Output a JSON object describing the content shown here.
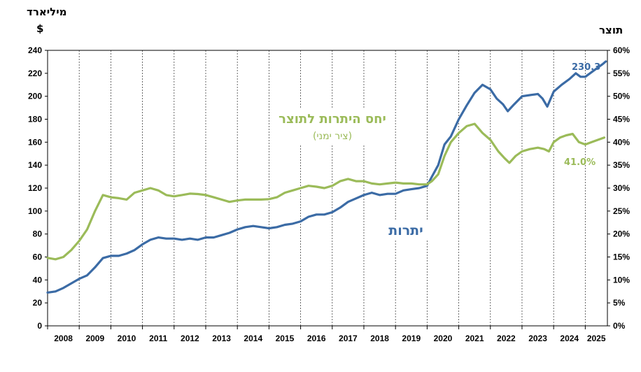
{
  "chart_data": {
    "type": "line",
    "left_unit_label_line1": "מיליארד",
    "left_unit_label_line2": "$",
    "right_unit_label": "תוצר",
    "y_left": {
      "min": 0,
      "max": 240,
      "step": 20,
      "ticks": [
        "0",
        "20",
        "40",
        "60",
        "80",
        "100",
        "120",
        "140",
        "160",
        "180",
        "200",
        "220",
        "240"
      ]
    },
    "y_right": {
      "min": 0,
      "max": 60,
      "step": 5,
      "ticks": [
        "0%",
        "5%",
        "10%",
        "15%",
        "20%",
        "25%",
        "30%",
        "35%",
        "40%",
        "45%",
        "50%",
        "55%",
        "60%"
      ]
    },
    "x_years": [
      "2008",
      "2009",
      "2010",
      "2011",
      "2012",
      "2013",
      "2014",
      "2015",
      "2016",
      "2017",
      "2018",
      "2019",
      "2020",
      "2021",
      "2022",
      "2023",
      "2024",
      "2025"
    ],
    "x_range": [
      2008.0,
      2025.7
    ],
    "grid": "vertical dashed lines at year boundaries",
    "series": [
      {
        "name": "יתרות",
        "axis": "left",
        "color": "#3B6BA5",
        "end_label": "230.3",
        "points": [
          [
            2008.0,
            29
          ],
          [
            2008.25,
            30
          ],
          [
            2008.5,
            33
          ],
          [
            2008.75,
            37
          ],
          [
            2009.0,
            41
          ],
          [
            2009.25,
            44
          ],
          [
            2009.5,
            51
          ],
          [
            2009.75,
            59
          ],
          [
            2010.0,
            61
          ],
          [
            2010.25,
            61
          ],
          [
            2010.5,
            63
          ],
          [
            2010.75,
            66
          ],
          [
            2011.0,
            71
          ],
          [
            2011.25,
            75
          ],
          [
            2011.5,
            77
          ],
          [
            2011.75,
            76
          ],
          [
            2012.0,
            76
          ],
          [
            2012.25,
            75
          ],
          [
            2012.5,
            76
          ],
          [
            2012.75,
            75
          ],
          [
            2013.0,
            77
          ],
          [
            2013.25,
            77
          ],
          [
            2013.5,
            79
          ],
          [
            2013.75,
            81
          ],
          [
            2014.0,
            84
          ],
          [
            2014.25,
            86
          ],
          [
            2014.5,
            87
          ],
          [
            2014.75,
            86
          ],
          [
            2015.0,
            85
          ],
          [
            2015.25,
            86
          ],
          [
            2015.5,
            88
          ],
          [
            2015.75,
            89
          ],
          [
            2016.0,
            91
          ],
          [
            2016.25,
            95
          ],
          [
            2016.5,
            97
          ],
          [
            2016.75,
            97
          ],
          [
            2017.0,
            99
          ],
          [
            2017.25,
            103
          ],
          [
            2017.5,
            108
          ],
          [
            2017.75,
            111
          ],
          [
            2018.0,
            114
          ],
          [
            2018.25,
            116
          ],
          [
            2018.5,
            114
          ],
          [
            2018.75,
            115
          ],
          [
            2019.0,
            115
          ],
          [
            2019.25,
            118
          ],
          [
            2019.5,
            119
          ],
          [
            2019.75,
            120
          ],
          [
            2020.0,
            122
          ],
          [
            2020.15,
            130
          ],
          [
            2020.35,
            140
          ],
          [
            2020.55,
            158
          ],
          [
            2020.75,
            165
          ],
          [
            2021.0,
            180
          ],
          [
            2021.25,
            192
          ],
          [
            2021.5,
            203
          ],
          [
            2021.75,
            210
          ],
          [
            2022.0,
            206
          ],
          [
            2022.2,
            198
          ],
          [
            2022.4,
            193
          ],
          [
            2022.55,
            187
          ],
          [
            2022.75,
            193
          ],
          [
            2023.0,
            200
          ],
          [
            2023.25,
            201
          ],
          [
            2023.5,
            202
          ],
          [
            2023.65,
            198
          ],
          [
            2023.8,
            191
          ],
          [
            2024.0,
            204
          ],
          [
            2024.25,
            210
          ],
          [
            2024.5,
            215
          ],
          [
            2024.7,
            220
          ],
          [
            2024.85,
            217
          ],
          [
            2025.0,
            217
          ],
          [
            2025.2,
            221
          ],
          [
            2025.4,
            225
          ],
          [
            2025.55,
            228
          ],
          [
            2025.65,
            230.3
          ]
        ]
      },
      {
        "name": "יחס היתרות לתוצר",
        "subtitle": "(ציר ימני)",
        "axis": "right",
        "color": "#9BBB59",
        "end_label": "41.0%",
        "points": [
          [
            2008.0,
            14.8
          ],
          [
            2008.25,
            14.5
          ],
          [
            2008.5,
            15.0
          ],
          [
            2008.75,
            16.5
          ],
          [
            2009.0,
            18.5
          ],
          [
            2009.25,
            21.0
          ],
          [
            2009.5,
            25.0
          ],
          [
            2009.75,
            28.5
          ],
          [
            2010.0,
            28.0
          ],
          [
            2010.25,
            27.8
          ],
          [
            2010.5,
            27.5
          ],
          [
            2010.75,
            29.0
          ],
          [
            2011.0,
            29.5
          ],
          [
            2011.25,
            30.0
          ],
          [
            2011.5,
            29.5
          ],
          [
            2011.75,
            28.5
          ],
          [
            2012.0,
            28.2
          ],
          [
            2012.25,
            28.5
          ],
          [
            2012.5,
            28.8
          ],
          [
            2012.75,
            28.7
          ],
          [
            2013.0,
            28.5
          ],
          [
            2013.25,
            28.0
          ],
          [
            2013.5,
            27.5
          ],
          [
            2013.75,
            27.0
          ],
          [
            2014.0,
            27.3
          ],
          [
            2014.25,
            27.5
          ],
          [
            2014.5,
            27.5
          ],
          [
            2014.75,
            27.5
          ],
          [
            2015.0,
            27.6
          ],
          [
            2015.25,
            28.0
          ],
          [
            2015.5,
            29.0
          ],
          [
            2015.75,
            29.5
          ],
          [
            2016.0,
            30.0
          ],
          [
            2016.25,
            30.5
          ],
          [
            2016.5,
            30.3
          ],
          [
            2016.75,
            30.0
          ],
          [
            2017.0,
            30.5
          ],
          [
            2017.25,
            31.5
          ],
          [
            2017.5,
            32.0
          ],
          [
            2017.75,
            31.5
          ],
          [
            2018.0,
            31.5
          ],
          [
            2018.25,
            31.0
          ],
          [
            2018.5,
            30.8
          ],
          [
            2018.75,
            31.0
          ],
          [
            2019.0,
            31.2
          ],
          [
            2019.25,
            31.0
          ],
          [
            2019.5,
            31.0
          ],
          [
            2019.75,
            30.8
          ],
          [
            2020.0,
            30.8
          ],
          [
            2020.15,
            31.5
          ],
          [
            2020.35,
            33.0
          ],
          [
            2020.55,
            37.0
          ],
          [
            2020.75,
            40.0
          ],
          [
            2021.0,
            42.0
          ],
          [
            2021.25,
            43.5
          ],
          [
            2021.5,
            44.0
          ],
          [
            2021.75,
            42.0
          ],
          [
            2022.0,
            40.5
          ],
          [
            2022.25,
            38.0
          ],
          [
            2022.45,
            36.5
          ],
          [
            2022.6,
            35.5
          ],
          [
            2022.8,
            37.0
          ],
          [
            2023.0,
            38.0
          ],
          [
            2023.25,
            38.5
          ],
          [
            2023.5,
            38.8
          ],
          [
            2023.7,
            38.5
          ],
          [
            2023.85,
            38.0
          ],
          [
            2024.0,
            40.0
          ],
          [
            2024.2,
            41.0
          ],
          [
            2024.4,
            41.5
          ],
          [
            2024.6,
            41.8
          ],
          [
            2024.8,
            40.0
          ],
          [
            2025.0,
            39.5
          ],
          [
            2025.2,
            40.0
          ],
          [
            2025.4,
            40.5
          ],
          [
            2025.6,
            41.0
          ]
        ]
      }
    ]
  }
}
